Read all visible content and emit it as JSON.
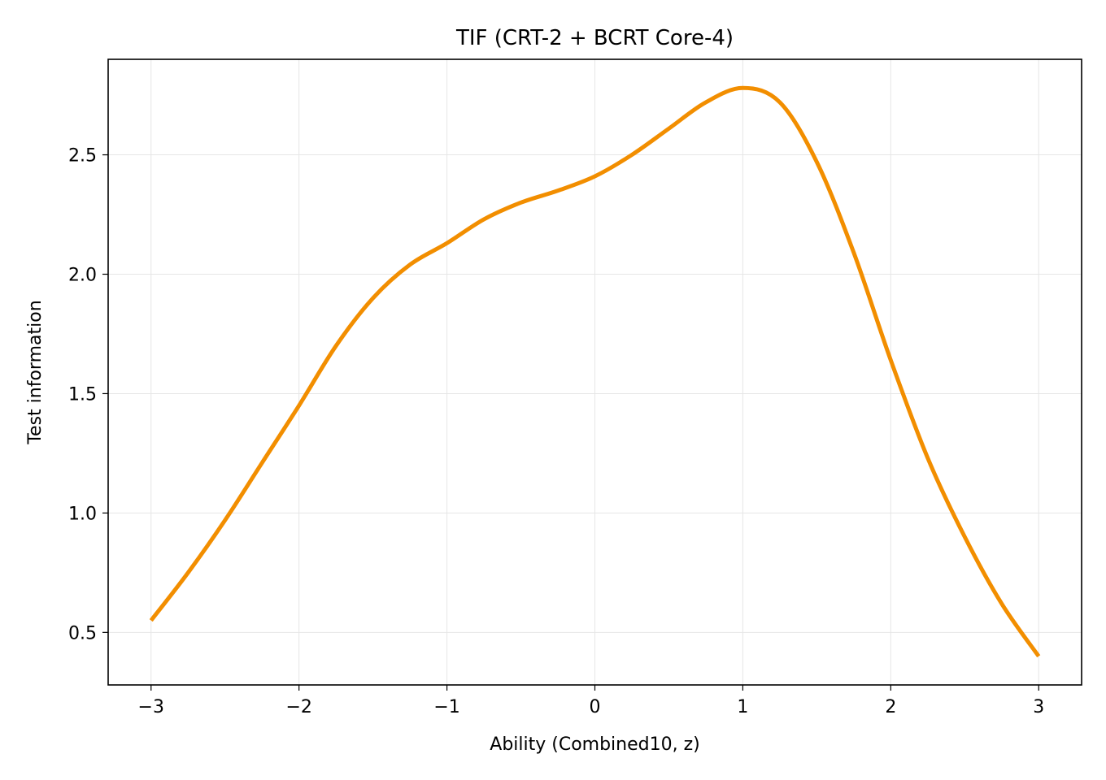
{
  "chart_data": {
    "type": "line",
    "title": "TIF (CRT-2 + BCRT Core-4)",
    "xlabel": "Ability (Combined10, z)",
    "ylabel": "Test information",
    "xlim": [
      -3.29,
      3.29
    ],
    "ylim": [
      0.28,
      2.9
    ],
    "xticks": [
      -3,
      -2,
      -1,
      0,
      1,
      2,
      3
    ],
    "xtick_labels": [
      "−3",
      "−2",
      "−1",
      "0",
      "1",
      "2",
      "3"
    ],
    "yticks": [
      0.5,
      1.0,
      1.5,
      2.0,
      2.5
    ],
    "ytick_labels": [
      "0.5",
      "1.0",
      "1.5",
      "2.0",
      "2.5"
    ],
    "grid": true,
    "series": [
      {
        "color": "#f28e00",
        "x": [
          -3.0,
          -2.75,
          -2.5,
          -2.25,
          -2.0,
          -1.75,
          -1.5,
          -1.25,
          -1.0,
          -0.75,
          -0.5,
          -0.25,
          0.0,
          0.25,
          0.5,
          0.75,
          1.0,
          1.25,
          1.5,
          1.75,
          2.0,
          2.25,
          2.5,
          2.75,
          3.0
        ],
        "y": [
          0.55,
          0.75,
          0.97,
          1.21,
          1.45,
          1.7,
          1.9,
          2.04,
          2.13,
          2.23,
          2.3,
          2.35,
          2.41,
          2.5,
          2.61,
          2.72,
          2.78,
          2.72,
          2.47,
          2.09,
          1.64,
          1.23,
          0.9,
          0.62,
          0.4
        ]
      }
    ]
  }
}
